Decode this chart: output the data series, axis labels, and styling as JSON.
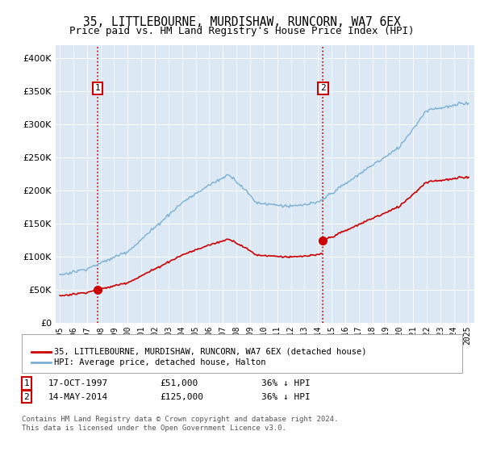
{
  "title": "35, LITTLEBOURNE, MURDISHAW, RUNCORN, WA7 6EX",
  "subtitle": "Price paid vs. HM Land Registry's House Price Index (HPI)",
  "legend_line1": "35, LITTLEBOURNE, MURDISHAW, RUNCORN, WA7 6EX (detached house)",
  "legend_line2": "HPI: Average price, detached house, Halton",
  "annotation1_label": "1",
  "annotation1_date": "17-OCT-1997",
  "annotation1_price": "£51,000",
  "annotation1_hpi": "36% ↓ HPI",
  "annotation1_year": 1997.8,
  "annotation1_value": 51000,
  "annotation2_label": "2",
  "annotation2_date": "14-MAY-2014",
  "annotation2_price": "£125,000",
  "annotation2_hpi": "36% ↓ HPI",
  "annotation2_year": 2014.37,
  "annotation2_value": 125000,
  "sale_color": "#cc0000",
  "hpi_color": "#7ab0d4",
  "dashed_line_color": "#cc0000",
  "marker_color": "#cc0000",
  "ylim": [
    0,
    420000
  ],
  "yticks": [
    0,
    50000,
    100000,
    150000,
    200000,
    250000,
    300000,
    350000,
    400000
  ],
  "footer_line1": "Contains HM Land Registry data © Crown copyright and database right 2024.",
  "footer_line2": "This data is licensed under the Open Government Licence v3.0.",
  "background_color": "#ffffff",
  "plot_background": "#dce9f5"
}
